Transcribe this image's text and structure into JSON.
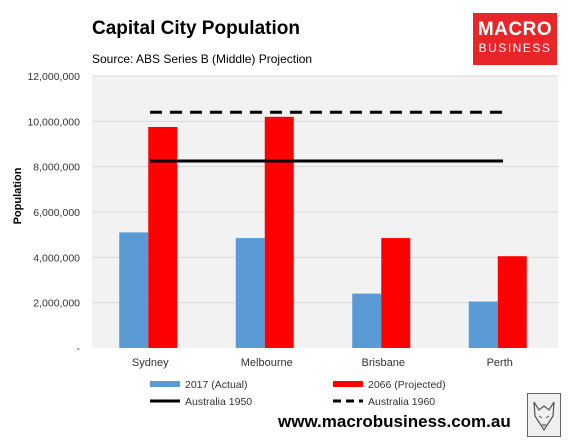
{
  "header": {
    "title": "Capital City Population",
    "subtitle": "Source: ABS Series B (Middle) Projection"
  },
  "logo": {
    "line1": "MACRO",
    "line2": "BUSINESS",
    "color": "#e8262a"
  },
  "footer": {
    "url": "www.macrobusiness.com.au"
  },
  "mascot": {
    "icon": "wolf-sketch-icon"
  },
  "chart_data": {
    "type": "bar",
    "title": "Capital City Population",
    "subtitle": "Source: ABS Series B (Middle) Projection",
    "xlabel": "",
    "ylabel": "Population",
    "ylim": [
      0,
      12000000
    ],
    "y_ticks": [
      0,
      2000000,
      4000000,
      6000000,
      8000000,
      10000000,
      12000000
    ],
    "y_tick_labels": [
      "-",
      "2,000,000",
      "4,000,000",
      "6,000,000",
      "8,000,000",
      "10,000,000",
      "12,000,000"
    ],
    "categories": [
      "Sydney",
      "Melbourne",
      "Brisbane",
      "Perth"
    ],
    "series": [
      {
        "name": "2017 (Actual)",
        "values": [
          5100000,
          4850000,
          2400000,
          2050000
        ],
        "color": "#5b9bd5"
      },
      {
        "name": "2066 (Projected)",
        "values": [
          9750000,
          10200000,
          4850000,
          4050000
        ],
        "color": "#ff0000"
      }
    ],
    "reference_lines": [
      {
        "name": "Australia 1950",
        "value": 8250000,
        "style": "solid",
        "color": "#000000"
      },
      {
        "name": "Australia 1960",
        "value": 10400000,
        "style": "dashed",
        "color": "#000000"
      }
    ],
    "plot_background": "#f2f2f2",
    "grid": true,
    "legend": "bottom"
  }
}
